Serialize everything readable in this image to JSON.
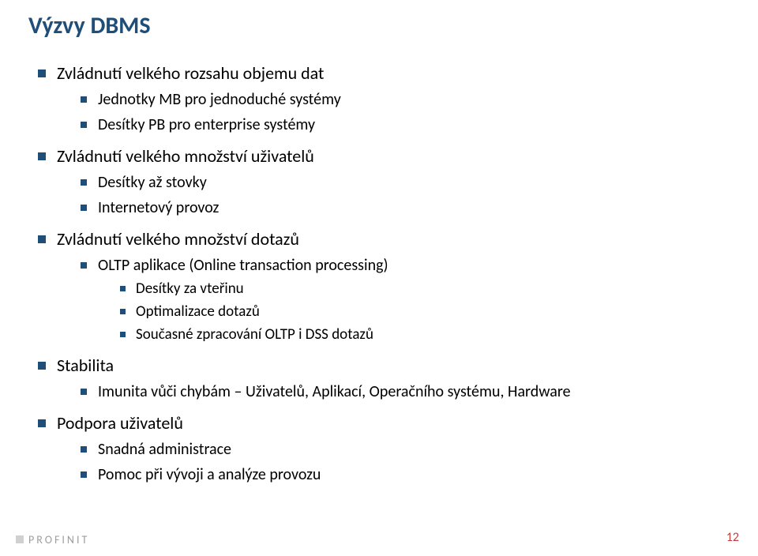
{
  "title": "Výzvy DBMS",
  "colors": {
    "heading": "#1f4e79",
    "bullet": "#1f4e79",
    "text": "#000000",
    "logo_gray": "#9e9e9e",
    "pagenum": "#c04040",
    "background": "#ffffff"
  },
  "typography": {
    "title_fontsize": 30,
    "lvl1_fontsize": 22,
    "lvl2_fontsize": 20,
    "lvl3_fontsize": 19,
    "font_family": "Calibri"
  },
  "items": [
    {
      "text": "Zvládnutí velkého rozsahu objemu dat",
      "children": [
        {
          "text": "Jednotky MB pro jednoduché systémy"
        },
        {
          "text": "Desítky PB pro enterprise systémy"
        }
      ]
    },
    {
      "text": "Zvládnutí velkého množství uživatelů",
      "children": [
        {
          "text": "Desítky až stovky"
        },
        {
          "text": "Internetový provoz"
        }
      ]
    },
    {
      "text": "Zvládnutí velkého množství dotazů",
      "children": [
        {
          "text": "OLTP aplikace (Online transaction processing)",
          "children": [
            {
              "text": "Desítky za vteřinu"
            },
            {
              "text": "Optimalizace dotazů"
            },
            {
              "text": "Současné zpracování OLTP i DSS dotazů"
            }
          ]
        }
      ]
    },
    {
      "text": "Stabilita",
      "children": [
        {
          "text": "Imunita vůči chybám – Uživatelů, Aplikací, Operačního systému, Hardware"
        }
      ]
    },
    {
      "text": "Podpora uživatelů",
      "children": [
        {
          "text": "Snadná administrace"
        },
        {
          "text": "Pomoc při vývoji a analýze provozu"
        }
      ]
    }
  ],
  "footer": {
    "logo_text": "PROFINIT",
    "page_number": "12"
  }
}
